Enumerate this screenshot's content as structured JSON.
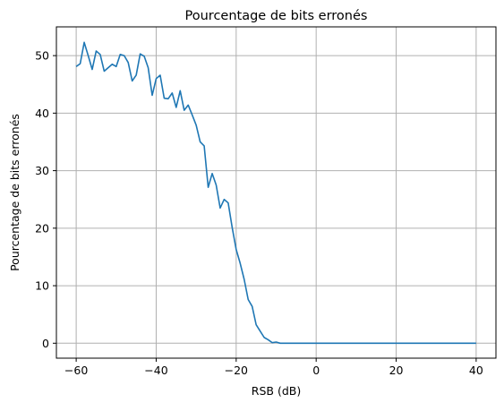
{
  "chart_data": {
    "type": "line",
    "title": "Pourcentage de bits erronés",
    "xlabel": "RSB (dB)",
    "ylabel": "Pourcentage de bits erronés",
    "xlim": [
      -64.95,
      44.95
    ],
    "ylim": [
      -2.6,
      55
    ],
    "xticks": [
      -60,
      -40,
      -20,
      0,
      20,
      40
    ],
    "yticks": [
      0,
      10,
      20,
      30,
      40,
      50
    ],
    "grid": true,
    "series": [
      {
        "color": "#1f77b4",
        "x": [
          -60,
          -59,
          -58,
          -57,
          -56,
          -55,
          -54,
          -53,
          -52,
          -51,
          -50,
          -49,
          -48,
          -47,
          -46,
          -45,
          -44,
          -43,
          -42,
          -41,
          -40,
          -39,
          -38,
          -37,
          -36,
          -35,
          -34,
          -33,
          -32,
          -31,
          -30,
          -29,
          -28,
          -27,
          -26,
          -25,
          -24,
          -23,
          -22,
          -21,
          -20,
          -19,
          -18,
          -17,
          -16,
          -15,
          -14,
          -13,
          -12,
          -11,
          -10,
          -9,
          -8,
          -7,
          -6,
          -5,
          -4,
          -3,
          -2,
          -1,
          0,
          1,
          2,
          3,
          4,
          5,
          6,
          7,
          8,
          9,
          10,
          11,
          12,
          13,
          14,
          15,
          16,
          17,
          18,
          19,
          20,
          21,
          22,
          23,
          24,
          25,
          26,
          27,
          28,
          29,
          30,
          31,
          32,
          33,
          34,
          35,
          36,
          37,
          38,
          39,
          40
        ],
        "y": [
          48.1,
          48.6,
          52.3,
          50.0,
          47.6,
          50.8,
          50.2,
          47.3,
          47.9,
          48.5,
          48.1,
          50.2,
          50.0,
          48.8,
          45.6,
          46.6,
          50.3,
          49.9,
          47.9,
          43.1,
          46.0,
          46.6,
          42.6,
          42.5,
          43.5,
          41.0,
          43.9,
          40.5,
          41.4,
          39.7,
          37.9,
          35.0,
          34.3,
          27.1,
          29.5,
          27.5,
          23.5,
          25.0,
          24.4,
          20.1,
          16.3,
          13.9,
          11.1,
          7.6,
          6.4,
          3.2,
          2.1,
          1.0,
          0.6,
          0.1,
          0.2,
          0,
          0,
          0,
          0,
          0,
          0,
          0,
          0,
          0,
          0,
          0,
          0,
          0,
          0,
          0,
          0,
          0,
          0,
          0,
          0,
          0,
          0,
          0,
          0,
          0,
          0,
          0,
          0,
          0,
          0,
          0,
          0,
          0,
          0,
          0,
          0,
          0,
          0,
          0,
          0,
          0,
          0,
          0,
          0,
          0,
          0,
          0,
          0,
          0,
          0
        ]
      }
    ]
  }
}
